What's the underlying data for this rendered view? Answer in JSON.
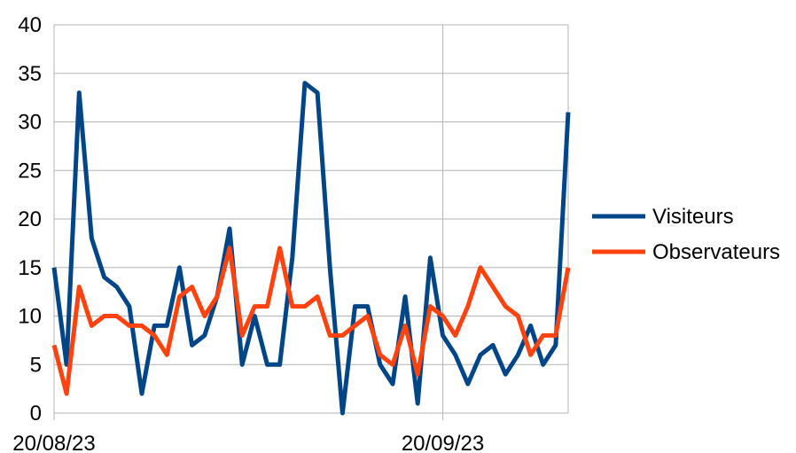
{
  "chart_data": {
    "type": "line",
    "title": "",
    "xlabel": "",
    "ylabel": "",
    "x_tick_labels": [
      "20/08/23",
      "20/09/23"
    ],
    "ylim": [
      0,
      40
    ],
    "y_ticks": [
      0,
      5,
      10,
      15,
      20,
      25,
      30,
      35,
      40
    ],
    "grid": true,
    "legend_position": "right",
    "series": [
      {
        "name": "Visiteurs",
        "color": "#004586",
        "values": [
          15,
          5,
          33,
          18,
          14,
          13,
          11,
          2,
          9,
          9,
          15,
          7,
          8,
          12,
          19,
          5,
          10,
          5,
          5,
          16,
          34,
          33,
          15,
          0,
          11,
          11,
          5,
          3,
          12,
          1,
          16,
          8,
          6,
          3,
          6,
          7,
          4,
          6,
          9,
          5,
          7,
          31
        ]
      },
      {
        "name": "Observateurs",
        "color": "#ff420e",
        "values": [
          7,
          2,
          13,
          9,
          10,
          10,
          9,
          9,
          8,
          6,
          12,
          13,
          10,
          12,
          17,
          8,
          11,
          11,
          17,
          11,
          11,
          12,
          8,
          8,
          9,
          10,
          6,
          5,
          9,
          4,
          11,
          10,
          8,
          11,
          15,
          13,
          11,
          10,
          6,
          8,
          8,
          15
        ]
      }
    ]
  }
}
